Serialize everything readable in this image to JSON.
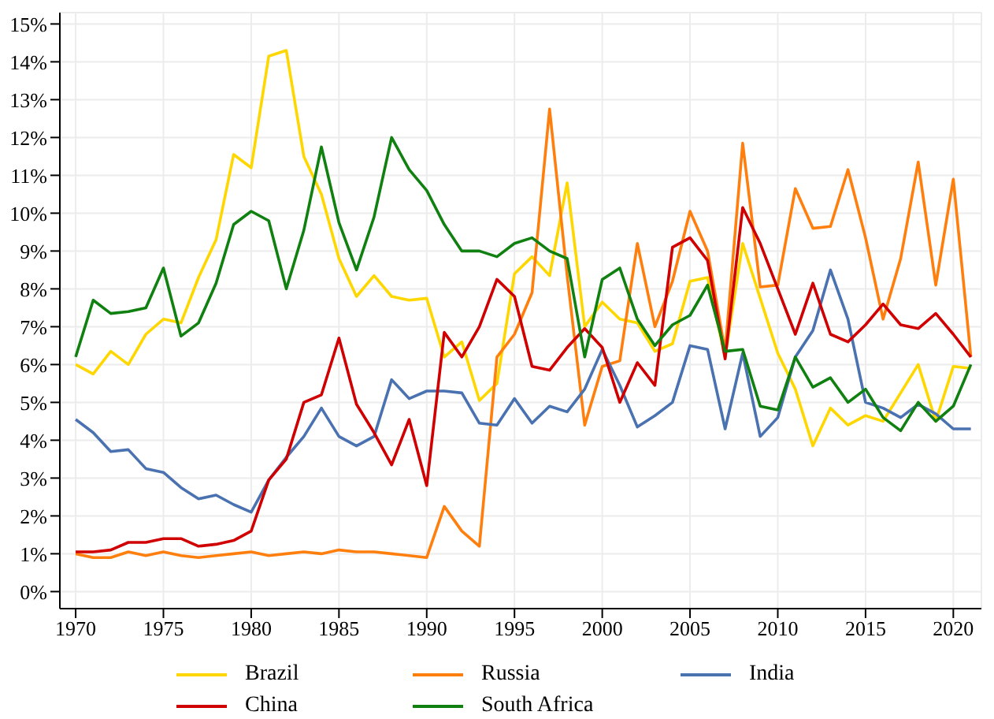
{
  "chart_data": {
    "type": "line",
    "x": [
      1970,
      1971,
      1972,
      1973,
      1974,
      1975,
      1976,
      1977,
      1978,
      1979,
      1980,
      1981,
      1982,
      1983,
      1984,
      1985,
      1986,
      1987,
      1988,
      1989,
      1990,
      1991,
      1992,
      1993,
      1994,
      1995,
      1996,
      1997,
      1998,
      1999,
      2000,
      2001,
      2002,
      2003,
      2004,
      2005,
      2006,
      2007,
      2008,
      2009,
      2010,
      2011,
      2012,
      2013,
      2014,
      2015,
      2016,
      2017,
      2018,
      2019,
      2020,
      2021
    ],
    "series": [
      {
        "name": "Brazil",
        "color": "#ffd700",
        "values": [
          6.0,
          5.75,
          6.35,
          6.0,
          6.8,
          7.2,
          7.1,
          8.3,
          9.3,
          11.55,
          11.2,
          14.15,
          14.3,
          11.5,
          10.5,
          8.8,
          7.8,
          8.35,
          7.8,
          7.7,
          7.75,
          6.2,
          6.6,
          5.05,
          5.5,
          8.4,
          8.85,
          8.35,
          10.8,
          7.0,
          7.65,
          7.2,
          7.1,
          6.35,
          6.55,
          8.2,
          8.3,
          6.2,
          9.2,
          7.75,
          6.3,
          5.35,
          3.85,
          4.85,
          4.4,
          4.65,
          4.5,
          5.25,
          6.0,
          4.5,
          5.95,
          5.9
        ]
      },
      {
        "name": "Russia",
        "color": "#ff7f0e",
        "values": [
          1.0,
          0.9,
          0.9,
          1.05,
          0.95,
          1.05,
          0.95,
          0.9,
          0.95,
          1.0,
          1.05,
          0.95,
          1.0,
          1.05,
          1.0,
          1.1,
          1.05,
          1.05,
          1.0,
          0.95,
          0.9,
          2.25,
          1.6,
          1.2,
          6.2,
          6.8,
          7.9,
          12.75,
          8.35,
          4.4,
          5.95,
          6.1,
          9.2,
          7.0,
          8.2,
          10.05,
          9.0,
          6.35,
          11.85,
          8.05,
          8.1,
          10.65,
          9.6,
          9.65,
          11.15,
          9.35,
          7.2,
          8.8,
          11.35,
          8.1,
          10.9,
          6.2
        ]
      },
      {
        "name": "India",
        "color": "#4a72b0",
        "values": [
          4.55,
          4.2,
          3.7,
          3.75,
          3.25,
          3.15,
          2.75,
          2.45,
          2.55,
          2.3,
          2.1,
          2.95,
          3.55,
          4.1,
          4.85,
          4.1,
          3.85,
          4.1,
          5.6,
          5.1,
          5.3,
          5.3,
          5.25,
          4.45,
          4.4,
          5.1,
          4.45,
          4.9,
          4.75,
          5.35,
          6.4,
          5.45,
          4.35,
          4.65,
          5.0,
          6.5,
          6.4,
          4.3,
          6.3,
          4.1,
          4.6,
          6.2,
          6.9,
          8.5,
          7.2,
          5.0,
          4.85,
          4.6,
          4.95,
          4.7,
          4.3,
          4.3
        ]
      },
      {
        "name": "China",
        "color": "#d00000",
        "values": [
          1.05,
          1.05,
          1.1,
          1.3,
          1.3,
          1.4,
          1.4,
          1.2,
          1.25,
          1.35,
          1.6,
          2.95,
          3.5,
          5.0,
          5.2,
          6.7,
          4.95,
          4.2,
          3.35,
          4.55,
          2.8,
          6.85,
          6.2,
          7.0,
          8.25,
          7.8,
          5.95,
          5.85,
          6.45,
          6.95,
          6.45,
          5.0,
          6.05,
          5.45,
          9.1,
          9.35,
          8.75,
          6.15,
          10.15,
          9.2,
          8.0,
          6.8,
          8.15,
          6.8,
          6.6,
          7.05,
          7.6,
          7.05,
          6.95,
          7.35,
          6.8,
          6.2
        ]
      },
      {
        "name": "South Africa",
        "color": "#108010",
        "values": [
          6.2,
          7.7,
          7.35,
          7.4,
          7.5,
          8.55,
          6.75,
          7.1,
          8.15,
          9.7,
          10.05,
          9.8,
          8.0,
          9.55,
          11.75,
          9.75,
          8.5,
          9.9,
          12.0,
          11.15,
          10.6,
          9.7,
          9.0,
          9.0,
          8.85,
          9.2,
          9.35,
          9.0,
          8.8,
          6.2,
          8.25,
          8.55,
          7.2,
          6.5,
          7.05,
          7.3,
          8.1,
          6.35,
          6.4,
          4.9,
          4.8,
          6.2,
          5.4,
          5.65,
          5.0,
          5.35,
          4.6,
          4.25,
          5.0,
          4.5,
          4.9,
          6.0
        ]
      }
    ],
    "xlim": [
      1969.1,
      2021.6
    ],
    "xticks": [
      1970,
      1975,
      1980,
      1985,
      1990,
      1995,
      2000,
      2005,
      2010,
      2015,
      2020
    ],
    "ylim": [
      -0.45,
      15.3
    ],
    "yticks": [
      {
        "value": 0,
        "label": "0%"
      },
      {
        "value": 1,
        "label": "1%"
      },
      {
        "value": 2,
        "label": "2%"
      },
      {
        "value": 3,
        "label": "3%"
      },
      {
        "value": 4,
        "label": "4%"
      },
      {
        "value": 5,
        "label": "5%"
      },
      {
        "value": 6,
        "label": "6%"
      },
      {
        "value": 7,
        "label": "7%"
      },
      {
        "value": 8,
        "label": "8%"
      },
      {
        "value": 9,
        "label": "9%"
      },
      {
        "value": 10,
        "label": "10%"
      },
      {
        "value": 11,
        "label": "11%"
      },
      {
        "value": 12,
        "label": "12%"
      },
      {
        "value": 13,
        "label": "13%"
      },
      {
        "value": 14,
        "label": "14%"
      },
      {
        "value": 15,
        "label": "15%"
      }
    ],
    "grid": true,
    "legend": "bottom",
    "marker": "none",
    "line_style": "solid"
  }
}
